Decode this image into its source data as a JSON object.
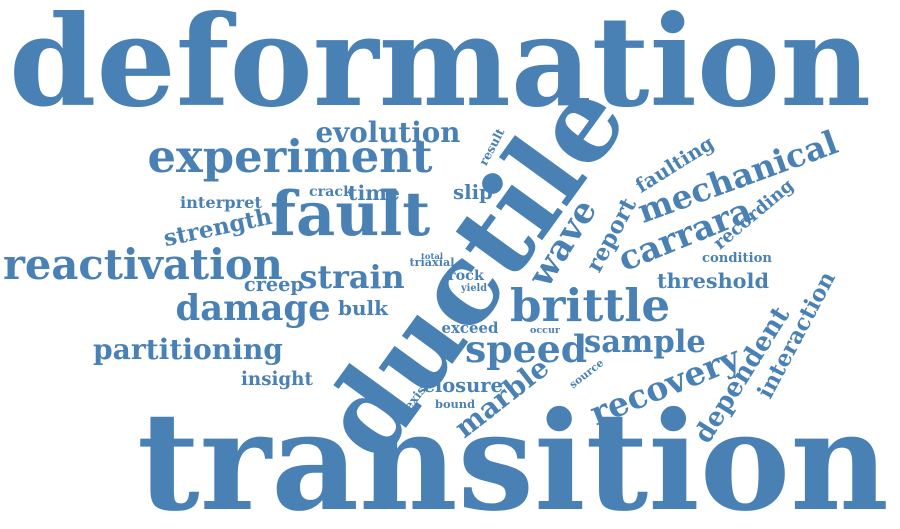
{
  "accent_color": "#4a81b5",
  "background_color": "#ffffff",
  "words": [
    {
      "id": "deformation",
      "text": "deformation"
    },
    {
      "id": "transition",
      "text": "transition"
    },
    {
      "id": "ductile",
      "text": "ductile"
    },
    {
      "id": "fault",
      "text": "fault"
    },
    {
      "id": "brittle",
      "text": "brittle"
    },
    {
      "id": "experiment",
      "text": "experiment"
    },
    {
      "id": "reactivation",
      "text": "reactivation"
    },
    {
      "id": "strain",
      "text": "strain"
    },
    {
      "id": "damage",
      "text": "damage"
    },
    {
      "id": "speed",
      "text": "speed"
    },
    {
      "id": "partitioning",
      "text": "partitioning"
    },
    {
      "id": "sample",
      "text": "sample"
    },
    {
      "id": "mechanical",
      "text": "mechanical"
    },
    {
      "id": "carrara",
      "text": "carrara"
    },
    {
      "id": "wave",
      "text": "wave"
    },
    {
      "id": "recovery",
      "text": "recovery"
    },
    {
      "id": "marble",
      "text": "marble"
    },
    {
      "id": "dependent",
      "text": "dependent"
    },
    {
      "id": "threshold",
      "text": "threshold"
    },
    {
      "id": "evolution",
      "text": "evolution"
    },
    {
      "id": "report",
      "text": "report"
    },
    {
      "id": "faulting",
      "text": "faulting"
    },
    {
      "id": "interaction",
      "text": "interaction"
    },
    {
      "id": "strength",
      "text": "strength"
    },
    {
      "id": "closure",
      "text": "closure"
    },
    {
      "id": "recording",
      "text": "recording"
    },
    {
      "id": "condition",
      "text": "condition"
    },
    {
      "id": "insight",
      "text": "insight"
    },
    {
      "id": "interpret",
      "text": "interpret"
    },
    {
      "id": "time",
      "text": "time"
    },
    {
      "id": "crack",
      "text": "crack"
    },
    {
      "id": "slip",
      "text": "slip"
    },
    {
      "id": "bulk",
      "text": "bulk"
    },
    {
      "id": "creep",
      "text": "creep"
    },
    {
      "id": "exceed",
      "text": "exceed"
    },
    {
      "id": "triaxial",
      "text": "triaxial"
    },
    {
      "id": "result",
      "text": "result"
    },
    {
      "id": "rock",
      "text": "rock"
    },
    {
      "id": "bound",
      "text": "bound"
    },
    {
      "id": "coexist",
      "text": "coexist"
    },
    {
      "id": "source",
      "text": "source"
    },
    {
      "id": "occur",
      "text": "occur"
    },
    {
      "id": "yield",
      "text": "yield"
    },
    {
      "id": "total",
      "text": "total"
    },
    {
      "id": "stress_tiny",
      "text": "str"
    }
  ]
}
